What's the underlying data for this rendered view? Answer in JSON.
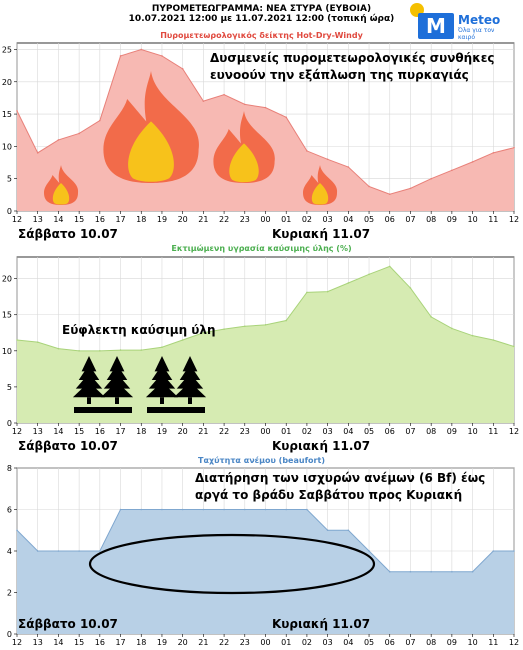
{
  "header": {
    "line1": "ΠΥΡΟΜΕΤΕΩΓΡΑΜΜΑ: ΝΕΑ ΣΤΥΡΑ (ΕΥΒΟΙΑ)",
    "line2": "10.07.2021 12:00 με 11.07.2021 12:00 (τοπική ώρα)"
  },
  "logo": {
    "name": "Meteo",
    "slogan": "Όλα για τον καιρό"
  },
  "colors": {
    "hdw_fill": "#f7b9b3",
    "hdw_line": "#e88079",
    "hdw_title": "#e04a3f",
    "moist_fill": "#d6ebb2",
    "moist_line": "#a9d37a",
    "moist_title": "#4caf50",
    "wind_fill": "#b8d0e6",
    "wind_line": "#7fa7cf",
    "wind_title": "#4a86c5",
    "flame_outer": "#f26b4a",
    "flame_inner": "#f7c21b",
    "tree": "#000000"
  },
  "icons": [
    "flame-icon",
    "tree-icon"
  ],
  "chart_data": [
    {
      "type": "area",
      "title": "Πυρομετεωρολογικός δείκτης Hot-Dry-Windy",
      "x": [
        "12",
        "13",
        "14",
        "15",
        "16",
        "17",
        "18",
        "19",
        "20",
        "21",
        "22",
        "23",
        "00",
        "01",
        "02",
        "03",
        "04",
        "05",
        "06",
        "07",
        "08",
        "09",
        "10",
        "11",
        "12"
      ],
      "values": [
        15.5,
        9,
        11,
        12,
        14,
        24,
        25,
        24,
        22,
        17,
        18,
        16.5,
        16,
        14.5,
        9.3,
        8,
        6.8,
        3.8,
        2.6,
        3.5,
        5,
        6.3,
        7.6,
        9,
        9.8
      ],
      "ylim": [
        0,
        26
      ],
      "yticks": [
        "0",
        "5",
        "10",
        "15",
        "20",
        "25"
      ],
      "grid": true,
      "day_labels": [
        "Σάββατο 10.07",
        "Κυριακή 11.07"
      ],
      "annotation": [
        "Δυσμενείς πυρομετεωρολογικές συνθήκες",
        "ευνοούν την εξάπλωση της πυρκαγιάς"
      ]
    },
    {
      "type": "area",
      "title": "Εκτιμώμενη υγρασία καύσιμης ύλης (%)",
      "x": [
        "12",
        "13",
        "14",
        "15",
        "16",
        "17",
        "18",
        "19",
        "20",
        "21",
        "22",
        "23",
        "00",
        "01",
        "02",
        "03",
        "04",
        "05",
        "06",
        "07",
        "08",
        "09",
        "10",
        "11",
        "12"
      ],
      "values": [
        11.5,
        11.2,
        10.3,
        10.0,
        10.0,
        10.1,
        10.1,
        10.5,
        11.5,
        12.5,
        13.0,
        13.4,
        13.6,
        14.2,
        18.1,
        18.2,
        19.4,
        20.6,
        21.7,
        18.7,
        14.7,
        13.1,
        12.1,
        11.5,
        10.6
      ],
      "ylim": [
        0,
        23
      ],
      "yticks": [
        "0",
        "5",
        "10",
        "15",
        "20"
      ],
      "grid": true,
      "day_labels": [
        "Σάββατο 10.07",
        "Κυριακή 11.07"
      ],
      "annotation": [
        "Εύφλεκτη καύσιμη ύλη"
      ]
    },
    {
      "type": "area",
      "title": "Ταχύτητα ανέμου (beaufort)",
      "x": [
        "12",
        "13",
        "14",
        "15",
        "16",
        "17",
        "18",
        "19",
        "20",
        "21",
        "22",
        "23",
        "00",
        "01",
        "02",
        "03",
        "04",
        "05",
        "06",
        "07",
        "08",
        "09",
        "10",
        "11",
        "12"
      ],
      "values": [
        5,
        4,
        4,
        4,
        4,
        6,
        6,
        6,
        6,
        6,
        6,
        6,
        6,
        6,
        6,
        5,
        5,
        4,
        3,
        3,
        3,
        3,
        3,
        4,
        4
      ],
      "ylim": [
        0,
        8
      ],
      "yticks": [
        "0",
        "2",
        "4",
        "6",
        "8"
      ],
      "grid": true,
      "day_labels": [
        "Σάββατο 10.07",
        "Κυριακή 11.07"
      ],
      "annotation": [
        "Διατήρηση των ισχυρών ανέμων (6 Bf) έως",
        "αργά το βράδυ Σαββάτου προς Κυριακή"
      ]
    }
  ]
}
